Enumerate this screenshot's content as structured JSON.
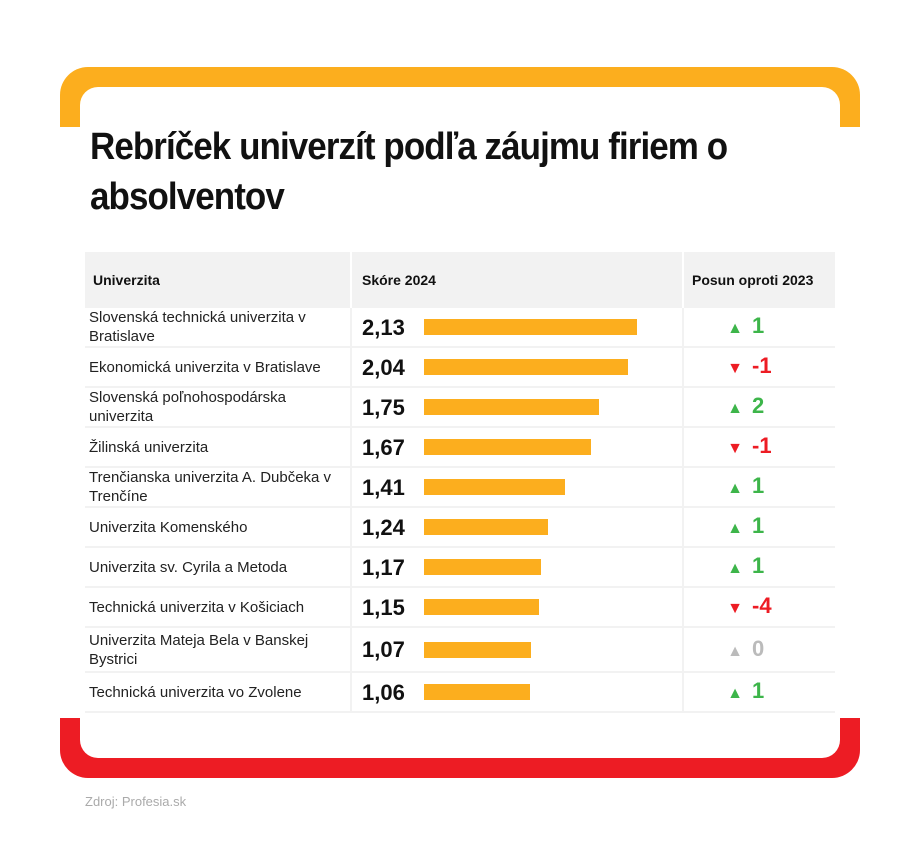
{
  "chart_data": {
    "type": "table",
    "title": "Rebríček univerzít podľa záujmu firiem o absolventov",
    "columns": [
      "Univerzita",
      "Skóre 2024",
      "Posun oproti 2023"
    ],
    "rows": [
      {
        "name": "Slovenská technická univerzita v Bratislave",
        "score": 2.13,
        "score_label": "2,13",
        "change": 1,
        "change_label": "1",
        "direction": "up"
      },
      {
        "name": "Ekonomická univerzita v Bratislave",
        "score": 2.04,
        "score_label": "2,04",
        "change": -1,
        "change_label": "-1",
        "direction": "down"
      },
      {
        "name": "Slovenská poľnohospodárska univerzita",
        "score": 1.75,
        "score_label": "1,75",
        "change": 2,
        "change_label": "2",
        "direction": "up"
      },
      {
        "name": "Žilinská univerzita",
        "score": 1.67,
        "score_label": "1,67",
        "change": -1,
        "change_label": "-1",
        "direction": "down"
      },
      {
        "name": "Trenčianska univerzita A. Dubčeka v Trenčíne",
        "score": 1.41,
        "score_label": "1,41",
        "change": 1,
        "change_label": "1",
        "direction": "up"
      },
      {
        "name": "Univerzita Komenského",
        "score": 1.24,
        "score_label": "1,24",
        "change": 1,
        "change_label": "1",
        "direction": "up"
      },
      {
        "name": "Univerzita sv. Cyrila a Metoda",
        "score": 1.17,
        "score_label": "1,17",
        "change": 1,
        "change_label": "1",
        "direction": "up"
      },
      {
        "name": "Technická univerzita v Košiciach",
        "score": 1.15,
        "score_label": "1,15",
        "change": -4,
        "change_label": "-4",
        "direction": "down"
      },
      {
        "name": "Univerzita Mateja Bela v Banskej Bystrici",
        "score": 1.07,
        "score_label": "1,07",
        "change": 0,
        "change_label": "0",
        "direction": "none"
      },
      {
        "name": "Technická univerzita vo Zvolene",
        "score": 1.06,
        "score_label": "1,06",
        "change": 1,
        "change_label": "1",
        "direction": "up"
      }
    ]
  },
  "source": "Zdroj: Profesia.sk",
  "colors": {
    "bar": "#fcae1e",
    "up": "#3db54a",
    "down": "#ed1c24",
    "none": "#bbbbbb",
    "top_frame": "#fcae1e",
    "bottom_frame": "#ed1c24"
  }
}
